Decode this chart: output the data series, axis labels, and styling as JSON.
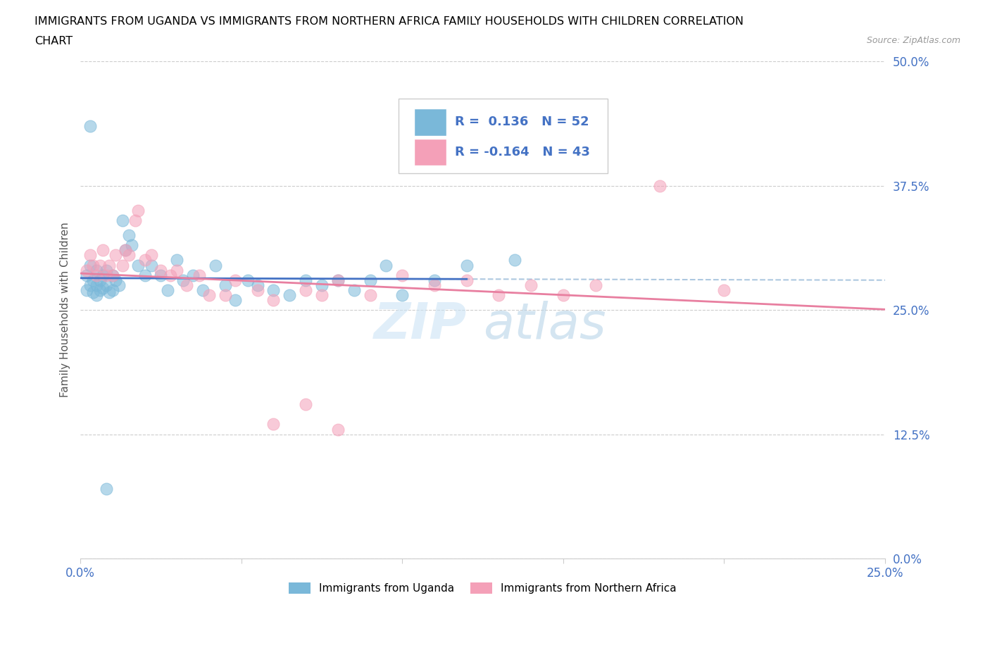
{
  "title_line1": "IMMIGRANTS FROM UGANDA VS IMMIGRANTS FROM NORTHERN AFRICA FAMILY HOUSEHOLDS WITH CHILDREN CORRELATION",
  "title_line2": "CHART",
  "source": "Source: ZipAtlas.com",
  "ylabel": "Family Households with Children",
  "x_min": 0.0,
  "x_max": 0.25,
  "y_min": 0.0,
  "y_max": 0.5,
  "y_ticks": [
    0.0,
    0.125,
    0.25,
    0.375,
    0.5
  ],
  "y_tick_labels": [
    "0.0%",
    "12.5%",
    "25.0%",
    "37.5%",
    "50.0%"
  ],
  "x_ticks": [
    0.0,
    0.05,
    0.1,
    0.15,
    0.2,
    0.25
  ],
  "x_tick_labels": [
    "0.0%",
    "",
    "",
    "",
    "",
    "25.0%"
  ],
  "color_blue": "#7ab8d9",
  "color_pink": "#f4a0b8",
  "color_blue_line": "#4472c4",
  "color_pink_line": "#e87fa0",
  "color_gray_dashed": "#adc8e0",
  "R_blue": 0.136,
  "N_blue": 52,
  "R_pink": -0.164,
  "N_pink": 43,
  "watermark_zip": "ZIP",
  "watermark_atlas": "atlas",
  "legend_blue_label": "Immigrants from Uganda",
  "legend_pink_label": "Immigrants from Northern Africa",
  "uganda_x": [
    0.002,
    0.002,
    0.003,
    0.003,
    0.004,
    0.004,
    0.005,
    0.005,
    0.005,
    0.006,
    0.006,
    0.007,
    0.007,
    0.008,
    0.008,
    0.009,
    0.01,
    0.01,
    0.011,
    0.012,
    0.013,
    0.014,
    0.015,
    0.016,
    0.018,
    0.02,
    0.022,
    0.025,
    0.027,
    0.03,
    0.032,
    0.035,
    0.038,
    0.042,
    0.045,
    0.048,
    0.052,
    0.055,
    0.06,
    0.065,
    0.07,
    0.075,
    0.08,
    0.085,
    0.09,
    0.095,
    0.1,
    0.11,
    0.12,
    0.135,
    0.003,
    0.008
  ],
  "uganda_y": [
    0.285,
    0.27,
    0.295,
    0.275,
    0.28,
    0.268,
    0.29,
    0.275,
    0.265,
    0.28,
    0.27,
    0.285,
    0.272,
    0.29,
    0.275,
    0.268,
    0.285,
    0.27,
    0.28,
    0.275,
    0.34,
    0.31,
    0.325,
    0.315,
    0.295,
    0.285,
    0.295,
    0.285,
    0.27,
    0.3,
    0.28,
    0.285,
    0.27,
    0.295,
    0.275,
    0.26,
    0.28,
    0.275,
    0.27,
    0.265,
    0.28,
    0.275,
    0.28,
    0.27,
    0.28,
    0.295,
    0.265,
    0.28,
    0.295,
    0.3,
    0.435,
    0.07
  ],
  "northafrica_x": [
    0.002,
    0.003,
    0.004,
    0.005,
    0.006,
    0.007,
    0.008,
    0.009,
    0.01,
    0.011,
    0.013,
    0.014,
    0.015,
    0.017,
    0.018,
    0.02,
    0.022,
    0.025,
    0.028,
    0.03,
    0.033,
    0.037,
    0.04,
    0.045,
    0.048,
    0.055,
    0.06,
    0.07,
    0.075,
    0.08,
    0.09,
    0.1,
    0.11,
    0.12,
    0.13,
    0.14,
    0.15,
    0.16,
    0.18,
    0.2,
    0.06,
    0.07,
    0.08
  ],
  "northafrica_y": [
    0.29,
    0.305,
    0.295,
    0.285,
    0.295,
    0.31,
    0.285,
    0.295,
    0.285,
    0.305,
    0.295,
    0.31,
    0.305,
    0.34,
    0.35,
    0.3,
    0.305,
    0.29,
    0.285,
    0.29,
    0.275,
    0.285,
    0.265,
    0.265,
    0.28,
    0.27,
    0.26,
    0.27,
    0.265,
    0.28,
    0.265,
    0.285,
    0.275,
    0.28,
    0.265,
    0.275,
    0.265,
    0.275,
    0.375,
    0.27,
    0.135,
    0.155,
    0.13
  ]
}
